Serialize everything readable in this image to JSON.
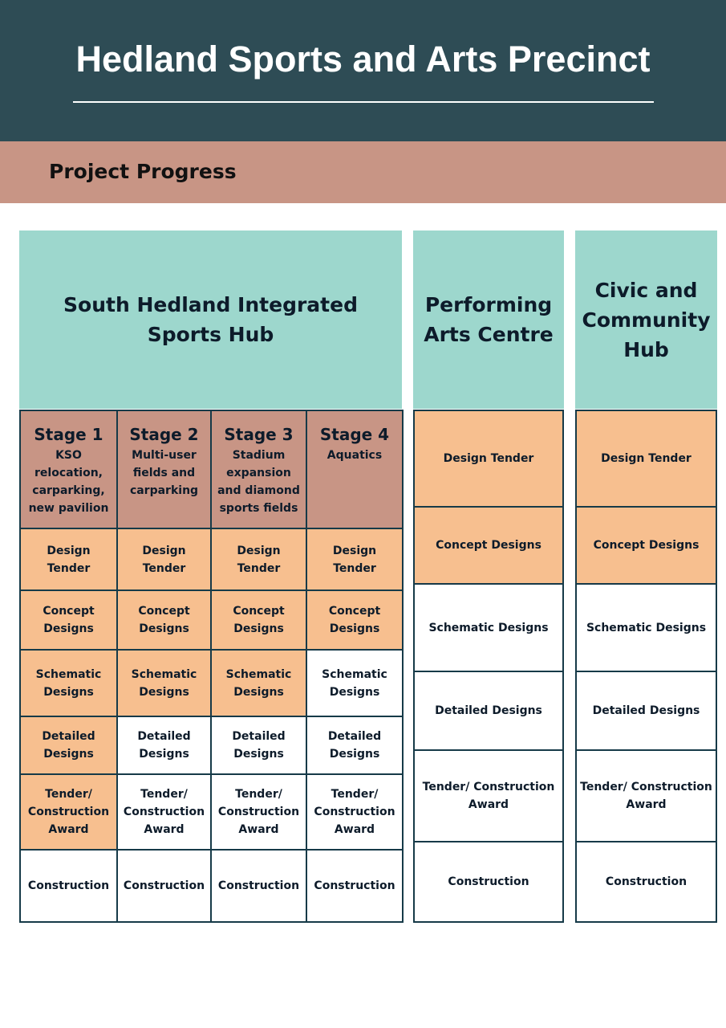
{
  "header": {
    "title": "Hedland Sports and Arts Precinct",
    "subtitle": "Project Progress"
  },
  "colors": {
    "header_bg": "#2e4c55",
    "band_bg": "#c89585",
    "column_head_bg": "#9dd7cd",
    "completed_bg": "#f7bf8f",
    "pending_bg": "#ffffff",
    "border": "#163a48"
  },
  "sports_hub": {
    "title": "South Hedland Integrated Sports Hub",
    "stages": [
      {
        "title": "Stage 1",
        "description": "KSO relocation, carparking, new pavilion",
        "milestones": [
          {
            "label": "Design Tender",
            "status": "completed"
          },
          {
            "label": "Concept Designs",
            "status": "completed"
          },
          {
            "label": "Schematic Designs",
            "status": "completed"
          },
          {
            "label": "Detailed Designs",
            "status": "completed"
          },
          {
            "label": "Tender/ Construction Award",
            "status": "completed"
          },
          {
            "label": "Construction",
            "status": "pending"
          }
        ]
      },
      {
        "title": "Stage 2",
        "description": "Multi-user fields and carparking",
        "milestones": [
          {
            "label": "Design Tender",
            "status": "completed"
          },
          {
            "label": "Concept Designs",
            "status": "completed"
          },
          {
            "label": "Schematic Designs",
            "status": "completed"
          },
          {
            "label": "Detailed Designs",
            "status": "pending"
          },
          {
            "label": "Tender/ Construction Award",
            "status": "pending"
          },
          {
            "label": "Construction",
            "status": "pending"
          }
        ]
      },
      {
        "title": "Stage 3",
        "description": "Stadium expansion and diamond sports fields",
        "milestones": [
          {
            "label": "Design Tender",
            "status": "completed"
          },
          {
            "label": "Concept Designs",
            "status": "completed"
          },
          {
            "label": "Schematic Designs",
            "status": "completed"
          },
          {
            "label": "Detailed Designs",
            "status": "pending"
          },
          {
            "label": "Tender/ Construction Award",
            "status": "pending"
          },
          {
            "label": "Construction",
            "status": "pending"
          }
        ]
      },
      {
        "title": "Stage 4",
        "description": "Aquatics",
        "milestones": [
          {
            "label": "Design Tender",
            "status": "completed"
          },
          {
            "label": "Concept Designs",
            "status": "completed"
          },
          {
            "label": "Schematic Designs",
            "status": "pending"
          },
          {
            "label": "Detailed Designs",
            "status": "pending"
          },
          {
            "label": "Tender/ Construction Award",
            "status": "pending"
          },
          {
            "label": "Construction",
            "status": "pending"
          }
        ]
      }
    ]
  },
  "performing_arts": {
    "title": "Performing Arts Centre",
    "milestones": [
      {
        "label": "Design Tender",
        "status": "completed"
      },
      {
        "label": "Concept Designs",
        "status": "completed"
      },
      {
        "label": "Schematic Designs",
        "status": "pending"
      },
      {
        "label": "Detailed Designs",
        "status": "pending"
      },
      {
        "label": "Tender/ Construction Award",
        "status": "pending"
      },
      {
        "label": "Construction",
        "status": "pending"
      }
    ]
  },
  "civic_hub": {
    "title": "Civic and Community Hub",
    "milestones": [
      {
        "label": "Design Tender",
        "status": "completed"
      },
      {
        "label": "Concept Designs",
        "status": "completed"
      },
      {
        "label": "Schematic Designs",
        "status": "pending"
      },
      {
        "label": "Detailed Designs",
        "status": "pending"
      },
      {
        "label": "Tender/ Construction Award",
        "status": "pending"
      },
      {
        "label": "Construction",
        "status": "pending"
      }
    ]
  }
}
